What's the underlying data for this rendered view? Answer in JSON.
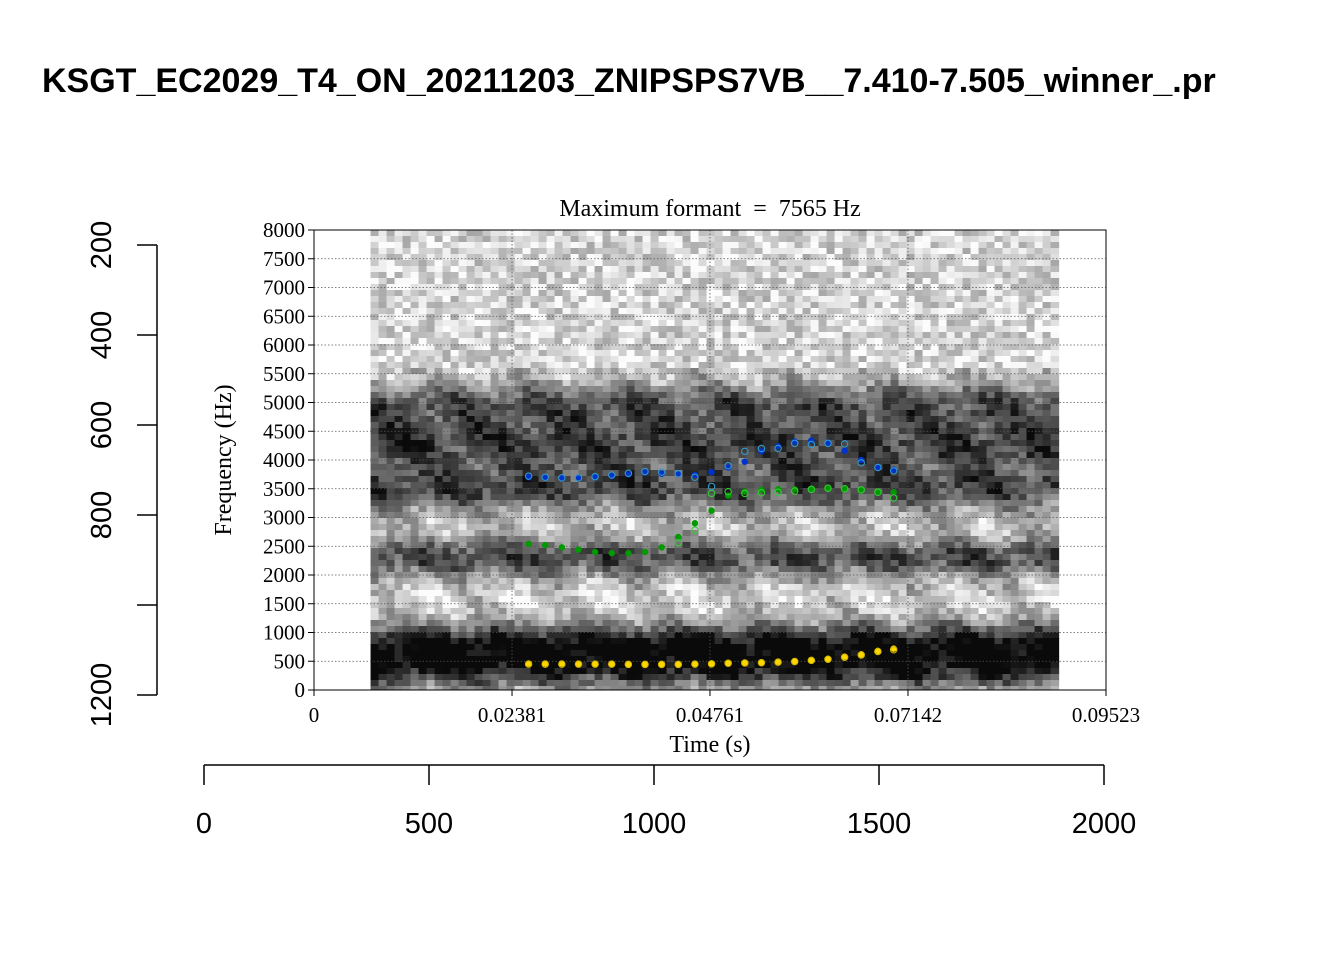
{
  "figure_title": "KSGT_EC2029_T4_ON_20211203_ZNIPSPS7VB__7.410-7.505_winner_.pr",
  "chart_data": [
    {
      "type": "scatter",
      "title": "Maximum formant  =  7565 Hz",
      "xlabel": "Time (s)",
      "ylabel": "Frequency (Hz)",
      "xlim": [
        0,
        0.09523
      ],
      "ylim": [
        0,
        8000
      ],
      "x_ticks": [
        "0",
        "0.02381",
        "0.04761",
        "0.07142",
        "0.09523"
      ],
      "y_ticks": [
        "0",
        "500",
        "1000",
        "1500",
        "2000",
        "2500",
        "3000",
        "3500",
        "4000",
        "4500",
        "5000",
        "5500",
        "6000",
        "6500",
        "7000",
        "7500",
        "8000"
      ],
      "grid": true,
      "background": "spectrogram",
      "spectrogram_time_range": [
        0.0068,
        0.0889
      ],
      "series": [
        {
          "color": "#ffd700",
          "marker": "filled",
          "x": [
            0.0258,
            0.0278,
            0.0298,
            0.0318,
            0.0338,
            0.0358,
            0.0378,
            0.0398,
            0.0418,
            0.0438,
            0.0458,
            0.0478,
            0.0498,
            0.0518,
            0.0538,
            0.0558,
            0.0578,
            0.0598,
            0.0618,
            0.0638,
            0.0658,
            0.0678,
            0.0697
          ],
          "y": [
            460,
            460,
            460,
            455,
            455,
            455,
            450,
            450,
            450,
            450,
            450,
            460,
            470,
            475,
            480,
            490,
            500,
            520,
            540,
            580,
            620,
            680,
            720
          ]
        },
        {
          "color": "#d4b800",
          "marker": "open",
          "x": [
            0.0258,
            0.0278,
            0.0298,
            0.0318,
            0.0338,
            0.0358,
            0.0378,
            0.0398,
            0.0418,
            0.0438,
            0.0458,
            0.0478,
            0.0498,
            0.0518,
            0.0538,
            0.0558,
            0.0578,
            0.0598,
            0.0618,
            0.0638,
            0.0658,
            0.0678,
            0.0697
          ],
          "y": [
            450,
            450,
            450,
            450,
            450,
            450,
            445,
            445,
            445,
            445,
            450,
            455,
            465,
            470,
            475,
            485,
            495,
            515,
            535,
            570,
            610,
            670,
            700
          ]
        },
        {
          "color": "#009900",
          "marker": "filled",
          "x": [
            0.0258,
            0.0278,
            0.0298,
            0.0318,
            0.0338,
            0.0358,
            0.0378,
            0.0398,
            0.0418,
            0.0438,
            0.0458,
            0.0478,
            0.0498,
            0.0518,
            0.0538,
            0.0558,
            0.0578,
            0.0598,
            0.0618,
            0.0638,
            0.0658,
            0.0678,
            0.0697
          ],
          "y": [
            2540,
            2520,
            2480,
            2440,
            2400,
            2380,
            2380,
            2400,
            2480,
            2660,
            2900,
            3120,
            3380,
            3450,
            3480,
            3490,
            3490,
            3500,
            3500,
            3490,
            3470,
            3450,
            3440
          ]
        },
        {
          "color": "#33cc33",
          "marker": "open",
          "x": [
            0.0438,
            0.0458,
            0.0478,
            0.0498,
            0.0518,
            0.0538,
            0.0558,
            0.0578,
            0.0598,
            0.0618,
            0.0638,
            0.0658,
            0.0678,
            0.0697
          ],
          "y": [
            2560,
            2780,
            3420,
            3450,
            3420,
            3430,
            3440,
            3460,
            3490,
            3510,
            3500,
            3480,
            3440,
            3340
          ]
        },
        {
          "color": "#0033cc",
          "marker": "filled",
          "x": [
            0.0258,
            0.0278,
            0.0298,
            0.0318,
            0.0338,
            0.0358,
            0.0378,
            0.0398,
            0.0418,
            0.0438,
            0.0458,
            0.0478,
            0.0498,
            0.0518,
            0.0538,
            0.0558,
            0.0578,
            0.0598,
            0.0618,
            0.0638,
            0.0658,
            0.0678,
            0.0697
          ],
          "y": [
            3700,
            3690,
            3680,
            3680,
            3700,
            3720,
            3750,
            3780,
            3760,
            3750,
            3740,
            3790,
            3870,
            3970,
            4150,
            4240,
            4320,
            4340,
            4300,
            4160,
            4000,
            3880,
            3830
          ]
        },
        {
          "color": "#3399cc",
          "marker": "open",
          "x": [
            0.0258,
            0.0278,
            0.0298,
            0.0318,
            0.0338,
            0.0358,
            0.0378,
            0.0398,
            0.0418,
            0.0438,
            0.0458,
            0.0478,
            0.0498,
            0.0518,
            0.0538,
            0.0558,
            0.0578,
            0.0598,
            0.0618,
            0.0638,
            0.0658,
            0.0678,
            0.0697
          ],
          "y": [
            3720,
            3700,
            3690,
            3690,
            3710,
            3740,
            3770,
            3800,
            3790,
            3760,
            3700,
            3540,
            3900,
            4150,
            4200,
            4200,
            4290,
            4270,
            4290,
            4280,
            3950,
            3870,
            3810
          ]
        }
      ]
    },
    {
      "type": "axis",
      "orientation": "horizontal",
      "xlim": [
        0,
        2000
      ],
      "ticks": [
        "0",
        "500",
        "1000",
        "1500",
        "2000"
      ]
    },
    {
      "type": "axis",
      "orientation": "vertical",
      "reversed": true,
      "ylim": [
        200,
        1200
      ],
      "tick_values": [
        200,
        400,
        600,
        800,
        1000,
        1200
      ],
      "ticks": [
        "200",
        "400",
        "600",
        "800",
        "",
        "1200"
      ]
    }
  ]
}
